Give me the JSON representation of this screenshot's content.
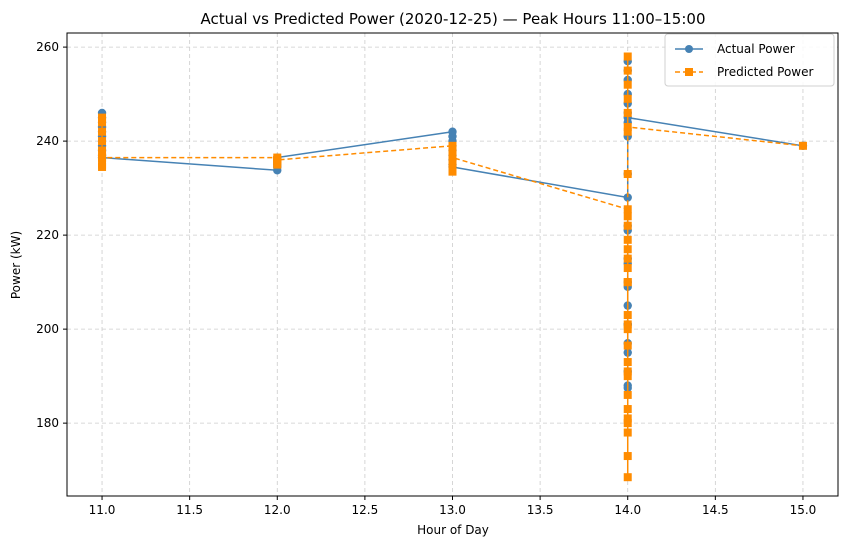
{
  "chart_data": {
    "type": "line",
    "title": "Actual vs Predicted Power (2020-12-25) — Peak Hours 11:00–15:00",
    "xlabel": "Hour of Day",
    "ylabel": "Power (kW)",
    "xlim": [
      10.8,
      15.2
    ],
    "ylim": [
      164.5,
      263.0
    ],
    "xticks": [
      11.0,
      11.5,
      12.0,
      12.5,
      13.0,
      13.5,
      14.0,
      14.5,
      15.0
    ],
    "xtick_labels": [
      "11.0",
      "11.5",
      "12.0",
      "12.5",
      "13.0",
      "13.5",
      "14.0",
      "14.5",
      "15.0"
    ],
    "yticks": [
      180,
      200,
      220,
      240,
      260
    ],
    "ytick_labels": [
      "180",
      "200",
      "220",
      "240",
      "260"
    ],
    "grid": true,
    "legend_position": "top-right",
    "series": [
      {
        "name": "Actual Power",
        "color": "#4682b4",
        "marker": "circle",
        "line_style": "solid",
        "points": [
          [
            11,
            246
          ],
          [
            11,
            245
          ],
          [
            11,
            244
          ],
          [
            11,
            243
          ],
          [
            11,
            242
          ],
          [
            11,
            241
          ],
          [
            11,
            240
          ],
          [
            11,
            239
          ],
          [
            11,
            238
          ],
          [
            11,
            237
          ],
          [
            11,
            236.5
          ],
          [
            12,
            233.8
          ],
          [
            12,
            234.5
          ],
          [
            12,
            235
          ],
          [
            12,
            235.5
          ],
          [
            12,
            236
          ],
          [
            12,
            236.5
          ],
          [
            13,
            242
          ],
          [
            13,
            241
          ],
          [
            13,
            240
          ],
          [
            13,
            239
          ],
          [
            13,
            238
          ],
          [
            13,
            237
          ],
          [
            13,
            236
          ],
          [
            13,
            235
          ],
          [
            13,
            234.5
          ],
          [
            14,
            228
          ],
          [
            14,
            222
          ],
          [
            14,
            215
          ],
          [
            14,
            210
          ],
          [
            14,
            205
          ],
          [
            14,
            201
          ],
          [
            14,
            195
          ],
          [
            14,
            191
          ],
          [
            14,
            188
          ],
          [
            14,
            187.5
          ],
          [
            14,
            197
          ],
          [
            14,
            201
          ],
          [
            14,
            209
          ],
          [
            14,
            214
          ],
          [
            14,
            221
          ],
          [
            14,
            233
          ],
          [
            14,
            241
          ],
          [
            14,
            244
          ],
          [
            14,
            246
          ],
          [
            14,
            248
          ],
          [
            14,
            250
          ],
          [
            14,
            253
          ],
          [
            14,
            255
          ],
          [
            14,
            257
          ],
          [
            14,
            245
          ],
          [
            15,
            239
          ]
        ]
      },
      {
        "name": "Predicted Power",
        "color": "#ff8c00",
        "marker": "square",
        "line_style": "dashed",
        "points": [
          [
            11,
            245
          ],
          [
            11,
            244
          ],
          [
            11,
            242
          ],
          [
            11,
            240
          ],
          [
            11,
            238
          ],
          [
            11,
            236.5
          ],
          [
            11,
            235
          ],
          [
            11,
            234.5
          ],
          [
            11,
            236.5
          ],
          [
            12,
            236.5
          ],
          [
            12,
            236
          ],
          [
            12,
            235.5
          ],
          [
            12,
            235
          ],
          [
            12,
            236
          ],
          [
            13,
            239
          ],
          [
            13,
            238
          ],
          [
            13,
            237
          ],
          [
            13,
            236
          ],
          [
            13,
            235
          ],
          [
            13,
            234
          ],
          [
            13,
            233.5
          ],
          [
            13,
            236.5
          ],
          [
            14,
            225.5
          ],
          [
            14,
            222
          ],
          [
            14,
            219
          ],
          [
            14,
            215
          ],
          [
            14,
            213
          ],
          [
            14,
            210
          ],
          [
            14,
            203
          ],
          [
            14,
            200
          ],
          [
            14,
            196.5
          ],
          [
            14,
            193
          ],
          [
            14,
            190
          ],
          [
            14,
            186
          ],
          [
            14,
            183
          ],
          [
            14,
            181
          ],
          [
            14,
            178
          ],
          [
            14,
            173
          ],
          [
            14,
            168.5
          ],
          [
            14,
            180
          ],
          [
            14,
            191
          ],
          [
            14,
            201
          ],
          [
            14,
            210
          ],
          [
            14,
            217
          ],
          [
            14,
            224
          ],
          [
            14,
            233
          ],
          [
            14,
            242
          ],
          [
            14,
            246
          ],
          [
            14,
            249
          ],
          [
            14,
            252
          ],
          [
            14,
            255
          ],
          [
            14,
            258
          ],
          [
            14,
            243
          ],
          [
            15,
            239
          ]
        ]
      }
    ]
  }
}
